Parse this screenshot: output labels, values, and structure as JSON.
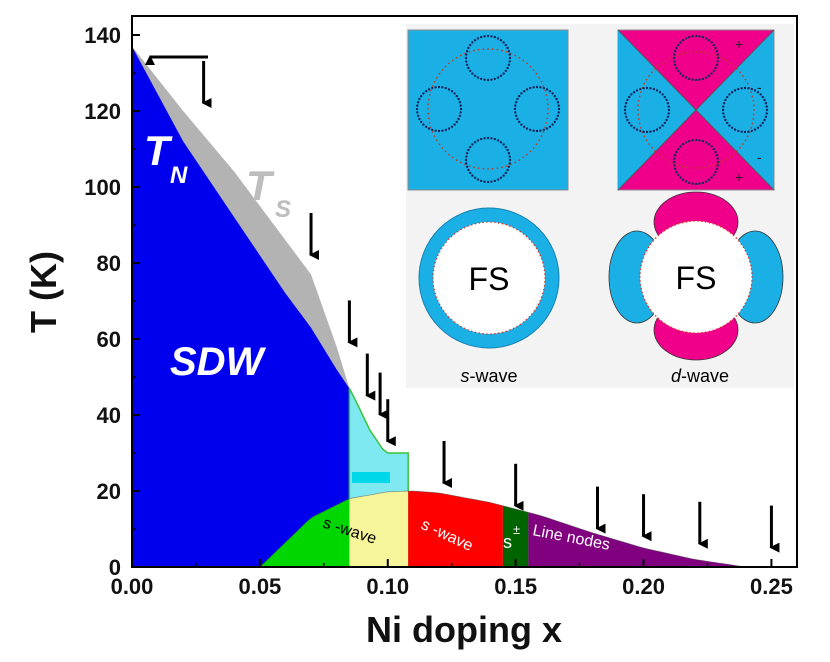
{
  "chart_data": {
    "type": "area",
    "xlabel": "Ni doping x",
    "ylabel": "T (K)",
    "xlim": [
      0,
      0.26
    ],
    "ylim": [
      0,
      145
    ],
    "x_ticks": [
      "0.00",
      "0.05",
      "0.10",
      "0.15",
      "0.20",
      "0.25"
    ],
    "x_tick_values": [
      0,
      0.05,
      0.1,
      0.15,
      0.2,
      0.25
    ],
    "y_ticks": [
      "0",
      "20",
      "40",
      "60",
      "80",
      "100",
      "120",
      "140"
    ],
    "y_tick_values": [
      0,
      20,
      40,
      60,
      80,
      100,
      120,
      140
    ],
    "grid": false,
    "series": [
      {
        "name": "T_N",
        "color": "#0000ee",
        "x": [
          0.0,
          0.02,
          0.04,
          0.06,
          0.07,
          0.08,
          0.085
        ],
        "y": [
          137,
          112,
          92,
          72,
          63,
          52,
          47
        ]
      },
      {
        "name": "T_S",
        "color": "#b3b3b3",
        "x": [
          0.0,
          0.02,
          0.04,
          0.06,
          0.07,
          0.08,
          0.085
        ],
        "y": [
          137,
          120,
          104,
          86,
          77,
          58,
          47
        ]
      },
      {
        "name": "T_c",
        "color": "#000000",
        "x": [
          0.05,
          0.07,
          0.085,
          0.1,
          0.11,
          0.12,
          0.14,
          0.16,
          0.18,
          0.2,
          0.22,
          0.24
        ],
        "y": [
          0,
          13,
          18,
          19.8,
          20,
          19.5,
          17,
          13.5,
          9,
          5,
          2,
          0
        ]
      }
    ],
    "annotations": {
      "tn_symbol": "T",
      "tn_subscript": "N",
      "ts_symbol": "T",
      "ts_subscript": "S",
      "sdw": "SDW",
      "swave1": "s -wave",
      "swave2": "s -wave",
      "spm": "s",
      "spm_sup": "±",
      "line_nodes": "Line nodes"
    },
    "arrows_x": [
      0.028,
      0.07,
      0.085,
      0.092,
      0.097,
      0.1,
      0.122,
      0.15,
      0.182,
      0.2,
      0.222,
      0.25
    ],
    "arrow_tips_y": [
      120,
      80,
      57,
      43,
      38,
      31,
      20,
      14,
      8,
      6,
      4,
      3
    ],
    "inset": {
      "fs_label_1": "FS",
      "fs_label_2": "FS",
      "swave_letter": "s",
      "swave_text": "-wave",
      "dwave_letter": "d",
      "dwave_text": "-wave",
      "sign_plus_top": "+",
      "sign_minus_right_top": "-",
      "sign_minus_right_bottom": "-",
      "sign_plus_bottom": "+"
    },
    "colors": {
      "sdw": "#0000ee",
      "ts": "#b3b3b3",
      "cyan": "#7fe9f2",
      "green": "#00d600",
      "yellow": "#f6f59a",
      "red": "#ff0000",
      "dark_green": "#006400",
      "purple": "#80007f",
      "inset_blue": "#1ab0e6",
      "inset_magenta": "#f0008a"
    }
  }
}
